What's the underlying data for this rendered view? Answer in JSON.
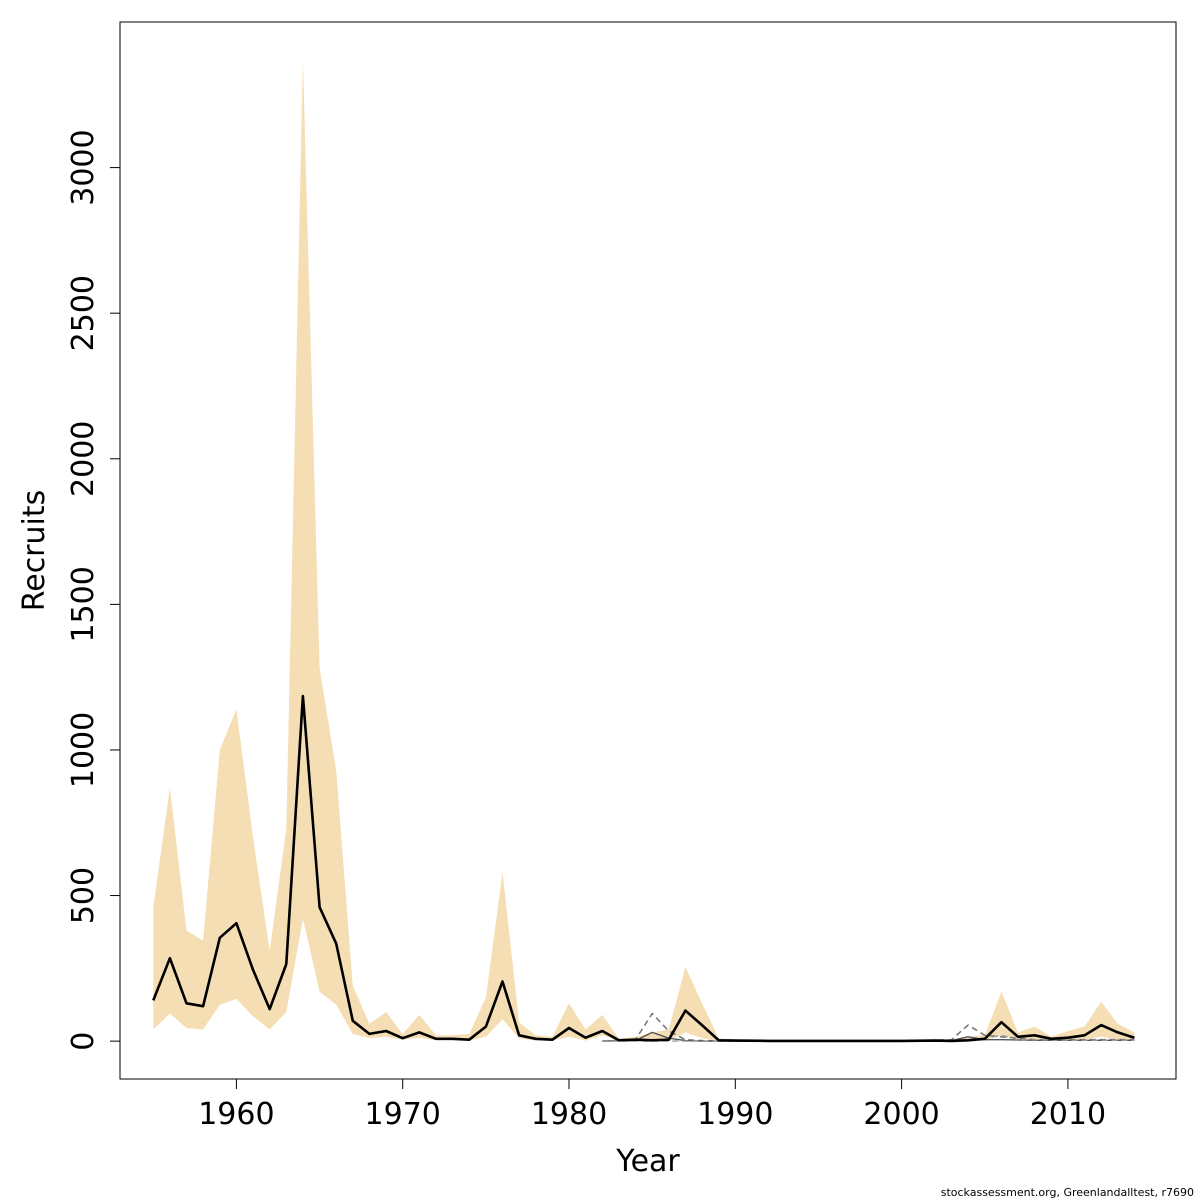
{
  "chart_data": {
    "type": "area",
    "xlabel": "Year",
    "ylabel": "Recruits",
    "xlim": [
      1953,
      2016.5
    ],
    "ylim": [
      -130,
      3500
    ],
    "xticks": [
      1960,
      1970,
      1980,
      1990,
      2000,
      2010
    ],
    "yticks": [
      0,
      500,
      1000,
      1500,
      2000,
      2500,
      3000
    ],
    "grid": false,
    "legend": "none",
    "colors": {
      "band": "#f5deb3",
      "median": "#000000",
      "retro": "#777777",
      "frame": "#000000"
    },
    "footer": "stockassessment.org, Greenlandalltest, r7690",
    "band": {
      "x": [
        1955,
        1956,
        1957,
        1958,
        1959,
        1960,
        1961,
        1962,
        1963,
        1964,
        1965,
        1966,
        1967,
        1968,
        1969,
        1970,
        1971,
        1972,
        1973,
        1974,
        1975,
        1976,
        1977,
        1978,
        1979,
        1980,
        1981,
        1982,
        1983,
        1984,
        1985,
        1986,
        1987,
        1988,
        1989,
        1990,
        1992,
        1994,
        1996,
        1998,
        2000,
        2002,
        2003,
        2004,
        2005,
        2006,
        2007,
        2008,
        2009,
        2010,
        2011,
        2012,
        2013,
        2014
      ],
      "lower": [
        40,
        95,
        45,
        40,
        125,
        145,
        85,
        40,
        100,
        420,
        170,
        125,
        25,
        10,
        15,
        5,
        12,
        3,
        3,
        2,
        15,
        75,
        10,
        2,
        2,
        15,
        2,
        20,
        1,
        2,
        1,
        2,
        30,
        10,
        1,
        1,
        1,
        1,
        1,
        1,
        1,
        1,
        1,
        1,
        2,
        20,
        5,
        5,
        2,
        3,
        5,
        15,
        5,
        2
      ],
      "upper": [
        460,
        870,
        380,
        345,
        1000,
        1140,
        700,
        310,
        730,
        3370,
        1280,
        930,
        190,
        60,
        100,
        25,
        90,
        20,
        20,
        25,
        150,
        580,
        65,
        20,
        15,
        130,
        40,
        90,
        8,
        15,
        30,
        40,
        255,
        130,
        10,
        5,
        4,
        4,
        4,
        4,
        4,
        4,
        4,
        15,
        20,
        170,
        30,
        50,
        15,
        35,
        50,
        135,
        60,
        30
      ]
    },
    "series": [
      {
        "line": "solid",
        "x": [
          1955,
          1956,
          1957,
          1958,
          1959,
          1960,
          1961,
          1962,
          1963,
          1964,
          1965,
          1966,
          1967,
          1968,
          1969,
          1970,
          1971,
          1972,
          1973,
          1974,
          1975,
          1976,
          1977,
          1978,
          1979,
          1980,
          1981,
          1982,
          1983,
          1984,
          1985,
          1986,
          1987,
          1988,
          1989,
          1990,
          1992,
          1994,
          1996,
          1998,
          2000,
          2002,
          2003,
          2004,
          2005,
          2006,
          2007,
          2008,
          2009,
          2010,
          2011,
          2012,
          2013,
          2014
        ],
        "values": [
          140,
          285,
          130,
          120,
          355,
          405,
          245,
          110,
          265,
          1185,
          460,
          335,
          70,
          25,
          35,
          10,
          30,
          8,
          8,
          5,
          50,
          205,
          20,
          8,
          5,
          45,
          12,
          35,
          3,
          5,
          3,
          5,
          105,
          55,
          3,
          2,
          1,
          1,
          1,
          1,
          1,
          2,
          1,
          3,
          8,
          65,
          15,
          20,
          8,
          12,
          20,
          55,
          30,
          12
        ]
      },
      {
        "line": "dashed",
        "x": [
          1982,
          1984,
          1985,
          1986,
          1987,
          1988,
          1990,
          2000,
          2003,
          2004,
          2005,
          2006,
          2007,
          2008,
          2010,
          2012,
          2014
        ],
        "values": [
          0,
          5,
          95,
          35,
          5,
          2,
          0,
          0,
          5,
          55,
          20,
          15,
          10,
          5,
          5,
          5,
          5
        ]
      },
      {
        "line": "solid-thin",
        "x": [
          1982,
          1984,
          1985,
          1986,
          1987,
          1988,
          1990,
          2000,
          2003,
          2004,
          2005,
          2006,
          2008,
          2010,
          2012,
          2014
        ],
        "values": [
          0,
          2,
          30,
          10,
          2,
          0,
          0,
          0,
          2,
          15,
          5,
          5,
          3,
          3,
          3,
          3
        ]
      },
      {
        "line": "dashed-light",
        "x": [
          1982,
          1990,
          2000,
          2004,
          2005,
          2006,
          2007,
          2010,
          2014
        ],
        "values": [
          0,
          0,
          0,
          5,
          10,
          20,
          5,
          3,
          3
        ]
      }
    ]
  }
}
